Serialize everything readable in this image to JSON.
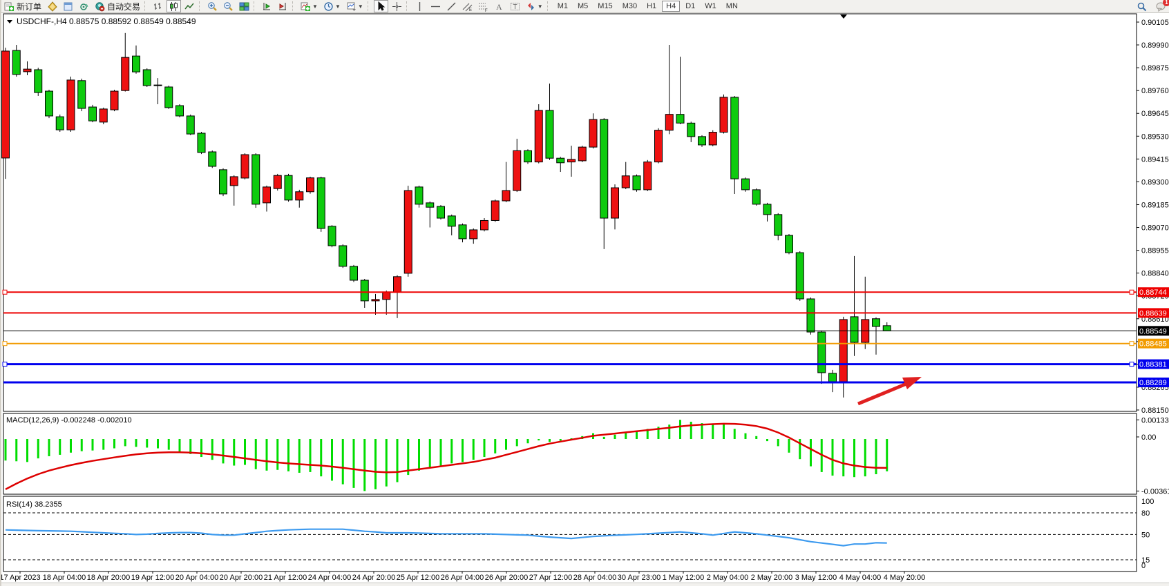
{
  "window": {
    "background": "#f2f1ee"
  },
  "toolbar": {
    "groups": [
      {
        "items": [
          {
            "icon": "new-order-icon",
            "label": "新订单"
          },
          {
            "icon": "chart-window-icon"
          },
          {
            "icon": "profile-icon"
          },
          {
            "icon": "navigator-icon"
          },
          {
            "icon": "autotrade-icon",
            "label": "自动交易"
          }
        ]
      },
      {
        "items": [
          {
            "icon": "bar-chart-icon"
          },
          {
            "icon": "candle-chart-icon",
            "active": true
          },
          {
            "icon": "line-chart-icon"
          }
        ]
      },
      {
        "items": [
          {
            "icon": "zoom-in-icon"
          },
          {
            "icon": "zoom-out-icon"
          },
          {
            "icon": "tile-windows-icon"
          }
        ]
      },
      {
        "items": [
          {
            "icon": "auto-scroll-icon"
          },
          {
            "icon": "chart-shift-icon"
          }
        ]
      },
      {
        "items": [
          {
            "icon": "indicators-icon",
            "caret": true
          },
          {
            "icon": "periods-icon",
            "caret": true
          },
          {
            "icon": "templates-icon",
            "caret": true
          }
        ]
      },
      {
        "items": [
          {
            "icon": "cursor-icon",
            "active": true
          },
          {
            "icon": "crosshair-icon"
          }
        ]
      },
      {
        "items": [
          {
            "icon": "vline-icon"
          },
          {
            "icon": "hline-icon"
          },
          {
            "icon": "trendline-icon"
          },
          {
            "icon": "channel-icon"
          },
          {
            "icon": "fibonacci-icon"
          },
          {
            "icon": "text-icon"
          },
          {
            "icon": "text-label-icon"
          },
          {
            "icon": "arrows-icon",
            "caret": true
          }
        ]
      }
    ],
    "timeframes": [
      "M1",
      "M5",
      "M15",
      "M30",
      "H1",
      "H4",
      "D1",
      "W1",
      "MN"
    ],
    "active_timeframe": "H4",
    "right_icons": [
      {
        "icon": "search-icon"
      },
      {
        "icon": "chat-icon",
        "badge": "1"
      }
    ]
  },
  "chart": {
    "title_line": "USDCHF-,H4  0.88575 0.88592 0.88549 0.88549",
    "symbol": "USDCHF-,H4",
    "open": "0.88575",
    "high": "0.88592",
    "low": "0.88549",
    "close": "0.88549"
  },
  "chart_data": {
    "type": "candlestick",
    "title": "USDCHF-,H4",
    "bull_color": "#ee1111",
    "bear_color": "#0ecb0e",
    "price_axis": {
      "top_value": 0.90105,
      "tick_step": 0.00115,
      "bottom_value": 0.8815,
      "ticks": [
        "0.90105",
        "0.89990",
        "0.89875",
        "0.89760",
        "0.89645",
        "0.89530",
        "0.89415",
        "0.89300",
        "0.89185",
        "0.89070",
        "0.88955",
        "0.88840",
        "0.88725",
        "0.88610",
        "0.88495",
        "0.88380",
        "0.88265",
        "0.88150"
      ]
    },
    "time_labels": [
      "17 Apr 2023",
      "18 Apr 04:00",
      "18 Apr 20:00",
      "19 Apr 12:00",
      "20 Apr 04:00",
      "20 Apr 20:00",
      "21 Apr 12:00",
      "24 Apr 04:00",
      "24 Apr 20:00",
      "25 Apr 12:00",
      "26 Apr 04:00",
      "26 Apr 20:00",
      "27 Apr 12:00",
      "28 Apr 04:00",
      "30 Apr 23:00",
      "1 May 12:00",
      "2 May 04:00",
      "2 May 20:00",
      "3 May 12:00",
      "4 May 04:00",
      "4 May 20:00"
    ],
    "bars": [
      [
        0.8942,
        0.89976,
        0.89315,
        0.89959
      ],
      [
        0.89962,
        0.8999,
        0.8983,
        0.89841
      ],
      [
        0.89855,
        0.89907,
        0.89837,
        0.89868
      ],
      [
        0.89865,
        0.89875,
        0.89733,
        0.8975
      ],
      [
        0.89757,
        0.89764,
        0.89621,
        0.89632
      ],
      [
        0.89628,
        0.89639,
        0.89552,
        0.89562
      ],
      [
        0.89562,
        0.8983,
        0.89552,
        0.89813
      ],
      [
        0.8981,
        0.8982,
        0.89656,
        0.8967
      ],
      [
        0.89677,
        0.89688,
        0.896,
        0.89607
      ],
      [
        0.89601,
        0.89674,
        0.8959,
        0.89667
      ],
      [
        0.89663,
        0.89764,
        0.89656,
        0.89757
      ],
      [
        0.8976,
        0.9005,
        0.89755,
        0.89927
      ],
      [
        0.89934,
        0.89987,
        0.89845,
        0.89854
      ],
      [
        0.89865,
        0.89872,
        0.89778,
        0.89785
      ],
      [
        0.89788,
        0.89823,
        0.89691,
        0.89785
      ],
      [
        0.89778,
        0.89785,
        0.89667,
        0.89674
      ],
      [
        0.89684,
        0.89691,
        0.89625,
        0.89632
      ],
      [
        0.89632,
        0.89639,
        0.89535,
        0.89541
      ],
      [
        0.89545,
        0.89552,
        0.8944,
        0.89448
      ],
      [
        0.89451,
        0.89458,
        0.8937,
        0.89378
      ],
      [
        0.89361,
        0.89368,
        0.89228,
        0.89239
      ],
      [
        0.89281,
        0.89333,
        0.8918,
        0.89326
      ],
      [
        0.89319,
        0.89444,
        0.89312,
        0.89437
      ],
      [
        0.89437,
        0.89444,
        0.89169,
        0.89187
      ],
      [
        0.89194,
        0.89281,
        0.8915,
        0.89274
      ],
      [
        0.89266,
        0.8934,
        0.89256,
        0.89332
      ],
      [
        0.89332,
        0.8934,
        0.892,
        0.89208
      ],
      [
        0.89208,
        0.8926,
        0.8917,
        0.8925
      ],
      [
        0.8925,
        0.89326,
        0.8924,
        0.8932
      ],
      [
        0.8932,
        0.89326,
        0.89048,
        0.89065
      ],
      [
        0.89076,
        0.89082,
        0.8897,
        0.88978
      ],
      [
        0.88978,
        0.88985,
        0.88866,
        0.88874
      ],
      [
        0.88874,
        0.88881,
        0.88795,
        0.88804
      ],
      [
        0.88804,
        0.88811,
        0.88665,
        0.887
      ],
      [
        0.887,
        0.88735,
        0.8863,
        0.88707
      ],
      [
        0.88707,
        0.88752,
        0.8863,
        0.88745
      ],
      [
        0.88745,
        0.88829,
        0.88613,
        0.88822
      ],
      [
        0.88839,
        0.8928,
        0.88822,
        0.89256
      ],
      [
        0.89274,
        0.89281,
        0.8917,
        0.89187
      ],
      [
        0.89194,
        0.89201,
        0.8907,
        0.89172
      ],
      [
        0.89176,
        0.89183,
        0.8911,
        0.89117
      ],
      [
        0.89128,
        0.89135,
        0.8903,
        0.89076
      ],
      [
        0.89083,
        0.8909,
        0.88995,
        0.89013
      ],
      [
        0.89013,
        0.89065,
        0.88988,
        0.89058
      ],
      [
        0.89058,
        0.89117,
        0.8905,
        0.89105
      ],
      [
        0.89105,
        0.89211,
        0.89098,
        0.89204
      ],
      [
        0.89204,
        0.894,
        0.89197,
        0.89256
      ],
      [
        0.89256,
        0.89517,
        0.89249,
        0.89457
      ],
      [
        0.89457,
        0.89464,
        0.8939,
        0.894
      ],
      [
        0.894,
        0.89691,
        0.89393,
        0.8966
      ],
      [
        0.8966,
        0.89795,
        0.8941,
        0.89419
      ],
      [
        0.89419,
        0.89426,
        0.8935,
        0.89396
      ],
      [
        0.894,
        0.89482,
        0.89326,
        0.89413
      ],
      [
        0.89406,
        0.89482,
        0.89399,
        0.89475
      ],
      [
        0.89475,
        0.89645,
        0.89468,
        0.89614
      ],
      [
        0.89614,
        0.89621,
        0.88961,
        0.89117
      ],
      [
        0.89117,
        0.89287,
        0.8906,
        0.8927
      ],
      [
        0.8927,
        0.894,
        0.89263,
        0.8933
      ],
      [
        0.8933,
        0.89337,
        0.8925,
        0.8926
      ],
      [
        0.8926,
        0.8941,
        0.89253,
        0.894
      ],
      [
        0.894,
        0.8957,
        0.89393,
        0.8956
      ],
      [
        0.8956,
        0.8999,
        0.8954,
        0.8964
      ],
      [
        0.8964,
        0.8993,
        0.8959,
        0.89596
      ],
      [
        0.89596,
        0.89603,
        0.895,
        0.89528
      ],
      [
        0.89528,
        0.89535,
        0.89476,
        0.89486
      ],
      [
        0.89486,
        0.8956,
        0.89479,
        0.8955
      ],
      [
        0.8955,
        0.8974,
        0.89543,
        0.89726
      ],
      [
        0.89726,
        0.89733,
        0.89239,
        0.89315
      ],
      [
        0.89315,
        0.89322,
        0.8925,
        0.8926
      ],
      [
        0.8926,
        0.89267,
        0.8918,
        0.89187
      ],
      [
        0.89187,
        0.89194,
        0.891,
        0.89135
      ],
      [
        0.89135,
        0.89142,
        0.89005,
        0.8903
      ],
      [
        0.8903,
        0.89037,
        0.88935,
        0.88943
      ],
      [
        0.88943,
        0.8895,
        0.887,
        0.8871
      ],
      [
        0.8871,
        0.88717,
        0.8853,
        0.88543
      ],
      [
        0.88543,
        0.8855,
        0.88282,
        0.88338
      ],
      [
        0.88335,
        0.88352,
        0.8824,
        0.88293
      ],
      [
        0.88293,
        0.8862,
        0.88213,
        0.88606
      ],
      [
        0.8862,
        0.88926,
        0.88422,
        0.88491
      ],
      [
        0.88491,
        0.88822,
        0.88457,
        0.88606
      ],
      [
        0.8861,
        0.88617,
        0.88429,
        0.88571
      ],
      [
        0.88575,
        0.88592,
        0.88549,
        0.88549
      ]
    ],
    "hlines": [
      {
        "price": 0.88744,
        "label": "0.88744",
        "color": "#ee0000",
        "width": 2,
        "handles": true
      },
      {
        "price": 0.88639,
        "label": "0.88639",
        "color": "#ee0000",
        "width": 2,
        "handles": false
      },
      {
        "price": 0.88549,
        "label": "0.88549",
        "color": "#000000",
        "width": 1,
        "handles": false
      },
      {
        "price": 0.88485,
        "label": "0.88485",
        "color": "#f29b00",
        "width": 2,
        "handles": true
      },
      {
        "price": 0.88381,
        "label": "0.88381",
        "color": "#0000ee",
        "width": 3,
        "handles": true
      },
      {
        "price": 0.88289,
        "label": "0.88289",
        "color": "#0000ee",
        "width": 3,
        "handles": false
      }
    ],
    "macd": {
      "label": "MACD(12,26,9) -0.002248 -0.002010",
      "main_value": "-0.002248",
      "signal_value": "-0.002010",
      "axis_labels": [
        "0.001331",
        "0.00",
        "-0.003619"
      ],
      "axis_max": 0.001331,
      "axis_min": -0.003619,
      "hist_color": "#00dd00",
      "signal_color": "#dd0000",
      "hist": [
        -0.0015,
        -0.00155,
        -0.0016,
        -0.00135,
        -0.0012,
        -0.0011,
        -0.00095,
        -0.00085,
        -0.0008,
        -0.00075,
        -0.00065,
        -0.0005,
        -0.00055,
        -0.0006,
        -0.00065,
        -0.00075,
        -0.0009,
        -0.00105,
        -0.00125,
        -0.00145,
        -0.0017,
        -0.00185,
        -0.0018,
        -0.0021,
        -0.0022,
        -0.00215,
        -0.00225,
        -0.00235,
        -0.0023,
        -0.0026,
        -0.0029,
        -0.00315,
        -0.0034,
        -0.003619,
        -0.0035,
        -0.0033,
        -0.003,
        -0.0025,
        -0.0022,
        -0.002,
        -0.00185,
        -0.0017,
        -0.0016,
        -0.00145,
        -0.00125,
        -0.001,
        -0.00075,
        -0.0005,
        -0.0003,
        -0.0001,
        -0.0002,
        -0.00012,
        5e-05,
        0.0002,
        0.0004,
        0.00015,
        0.0003,
        0.00045,
        0.00055,
        0.0007,
        0.00085,
        0.001,
        0.001331,
        0.0012,
        0.0011,
        0.00105,
        0.0011,
        0.0007,
        0.0004,
        0.0002,
        -0.00015,
        -0.0005,
        -0.00095,
        -0.0014,
        -0.0019,
        -0.0023,
        -0.00255,
        -0.0026,
        -0.00265,
        -0.0026,
        -0.00245,
        -0.002248
      ],
      "signal": [
        -0.0035,
        -0.0031,
        -0.00275,
        -0.00245,
        -0.0022,
        -0.002,
        -0.00182,
        -0.00166,
        -0.00152,
        -0.0014,
        -0.00128,
        -0.00117,
        -0.00107,
        -0.001,
        -0.00095,
        -0.00092,
        -0.00092,
        -0.00095,
        -0.001,
        -0.00107,
        -0.00115,
        -0.00125,
        -0.00135,
        -0.00145,
        -0.00155,
        -0.00163,
        -0.0017,
        -0.00175,
        -0.0018,
        -0.00185,
        -0.00192,
        -0.002,
        -0.0021,
        -0.0022,
        -0.00228,
        -0.00232,
        -0.0023,
        -0.0022,
        -0.0021,
        -0.002,
        -0.0019,
        -0.0018,
        -0.0017,
        -0.0016,
        -0.00145,
        -0.0013,
        -0.0011,
        -0.0009,
        -0.0007,
        -0.0005,
        -0.00032,
        -0.00018,
        -5e-05,
        8e-05,
        0.00022,
        0.0003,
        0.00038,
        0.00046,
        0.00054,
        0.00062,
        0.0007,
        0.00078,
        0.00088,
        0.00095,
        0.001,
        0.00103,
        0.00106,
        0.00105,
        0.001,
        0.0009,
        0.00072,
        0.00045,
        0.0001,
        -0.0003,
        -0.0007,
        -0.0011,
        -0.00145,
        -0.0017,
        -0.00185,
        -0.00195,
        -0.002,
        -0.00201
      ]
    },
    "rsi": {
      "label": "RSI(14) 38.2355",
      "value": "38.2355",
      "axis_labels": [
        "100",
        "80",
        "50",
        "15",
        "0"
      ],
      "levels": [
        80,
        50,
        15
      ],
      "line_color": "#3e9bef",
      "values": [
        56.4,
        56.0,
        55.6,
        55.2,
        55.0,
        54.8,
        54.5,
        53.8,
        53.0,
        52.3,
        51.6,
        51.0,
        50.0,
        50.5,
        51.5,
        52.2,
        52.7,
        52.7,
        51.8,
        50.0,
        49.1,
        49.1,
        50.9,
        52.7,
        54.5,
        55.5,
        56.4,
        57.0,
        57.3,
        57.3,
        57.3,
        57.3,
        56.0,
        54.5,
        53.6,
        52.3,
        52.3,
        52.3,
        52.0,
        51.4,
        51.0,
        51.0,
        51.0,
        51.0,
        50.9,
        50.5,
        50.0,
        49.5,
        49.1,
        47.7,
        46.4,
        45.5,
        44.5,
        45.9,
        47.3,
        48.2,
        48.9,
        49.5,
        50.2,
        50.9,
        51.8,
        52.7,
        53.6,
        52.3,
        50.9,
        49.1,
        51.4,
        53.6,
        52.3,
        50.9,
        49.1,
        47.3,
        45.5,
        42.7,
        40.0,
        38.2,
        36.4,
        34.5,
        36.8,
        36.8,
        38.6,
        38.2355
      ]
    },
    "annotation_arrow": {
      "color": "#e02020",
      "direction": "up-right"
    }
  }
}
